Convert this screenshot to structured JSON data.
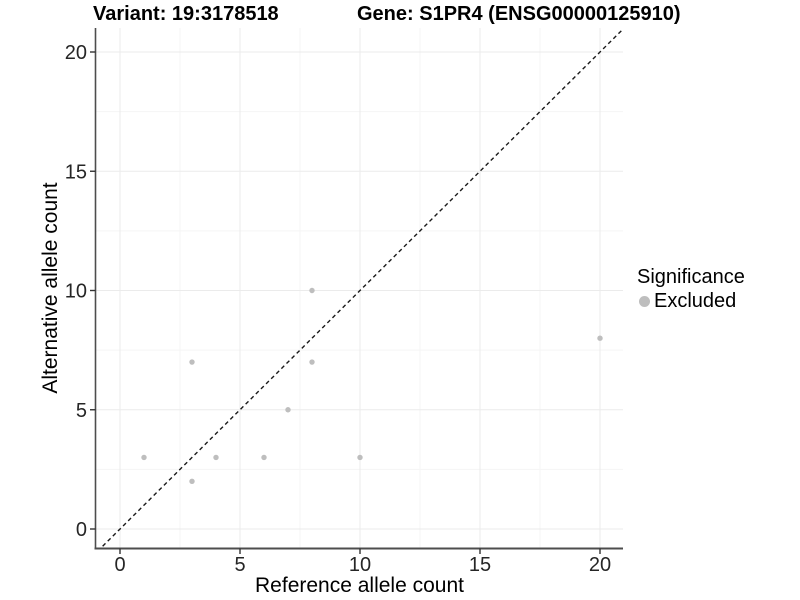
{
  "header": {
    "variant_title": "Variant: 19:3178518",
    "gene_title": "Gene: S1PR4 (ENSG00000125910)"
  },
  "axes": {
    "x_label": "Reference allele count",
    "y_label": "Alternative allele count"
  },
  "legend": {
    "title": "Significance",
    "items": [
      {
        "label": "Excluded",
        "color": "#bebebe"
      }
    ]
  },
  "chart_data": {
    "type": "scatter",
    "xlabel": "Reference allele count",
    "ylabel": "Alternative allele count",
    "xlim": [
      -1,
      21
    ],
    "ylim": [
      -1,
      21
    ],
    "x_ticks": [
      0,
      5,
      10,
      15,
      20
    ],
    "y_ticks": [
      0,
      5,
      10,
      15,
      20
    ],
    "x_minor_ticks": [
      2.5,
      7.5,
      12.5,
      17.5
    ],
    "y_minor_ticks": [
      2.5,
      7.5,
      12.5,
      17.5
    ],
    "grid": "major+minor",
    "legend_position": "right",
    "identity_line": {
      "style": "dashed",
      "slope": 1,
      "intercept": 0,
      "color": "#1a1a1a"
    },
    "series": [
      {
        "name": "Excluded",
        "color": "#bebebe",
        "points": [
          [
            1,
            3
          ],
          [
            3,
            2
          ],
          [
            3,
            7
          ],
          [
            4,
            3
          ],
          [
            6,
            3
          ],
          [
            7,
            5
          ],
          [
            8,
            7
          ],
          [
            8,
            10
          ],
          [
            10,
            3
          ],
          [
            20,
            8
          ]
        ]
      }
    ]
  },
  "colors": {
    "point": "#bebebe",
    "grid_major": "#ebebeb",
    "grid_minor": "#f5f5f5",
    "axis_line": "#4d4d4d",
    "tick_text": "#262626"
  }
}
